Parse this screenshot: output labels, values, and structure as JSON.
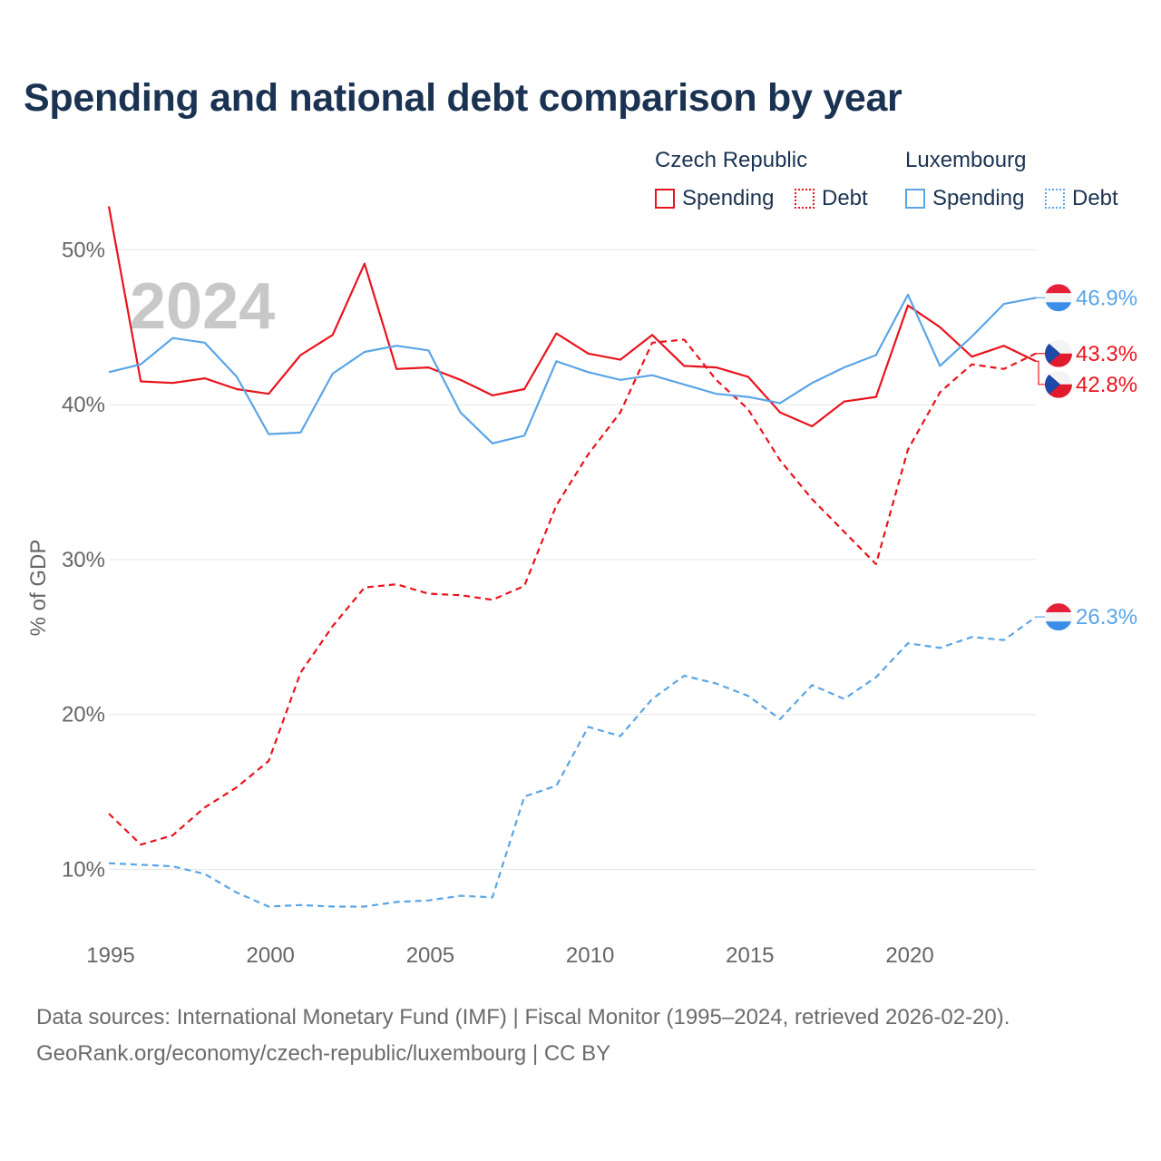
{
  "title": "Spending and national debt comparison by year",
  "legend": {
    "groups": [
      {
        "name": "Czech Republic",
        "items": [
          {
            "label": "Spending"
          },
          {
            "label": "Debt"
          }
        ]
      },
      {
        "name": "Luxembourg",
        "items": [
          {
            "label": "Spending"
          },
          {
            "label": "Debt"
          }
        ]
      }
    ]
  },
  "colors": {
    "czech": "#e8141d",
    "luxembourg": "#5aa5e6",
    "grid": "#e6e6e6",
    "axis_text": "#666666",
    "year_watermark": "#c8c8c8"
  },
  "footer": {
    "line1": "Data sources: International Monetary Fund (IMF) | Fiscal Monitor (1995–2024, retrieved 2026-02-20).",
    "line2": "GeoRank.org/economy/czech-republic/luxembourg | CC BY"
  },
  "chart_data": {
    "type": "line",
    "year_label": "2024",
    "ylabel": "% of GDP",
    "xlim": [
      1995,
      2024
    ],
    "ylim": [
      4,
      54
    ],
    "x_ticks": [
      1995,
      2000,
      2005,
      2010,
      2015,
      2020
    ],
    "y_ticks": [
      {
        "value": 10,
        "label": "10%"
      },
      {
        "value": 20,
        "label": "20%"
      },
      {
        "value": 30,
        "label": "30%"
      },
      {
        "value": 40,
        "label": "40%"
      },
      {
        "value": 50,
        "label": "50%"
      }
    ],
    "x": [
      1995,
      1996,
      1997,
      1998,
      1999,
      2000,
      2001,
      2002,
      2003,
      2004,
      2005,
      2006,
      2007,
      2008,
      2009,
      2010,
      2011,
      2012,
      2013,
      2014,
      2015,
      2016,
      2017,
      2018,
      2019,
      2020,
      2021,
      2022,
      2023,
      2024
    ],
    "series": [
      {
        "name": "Czech Republic Spending",
        "country": "czech",
        "style": "solid",
        "values": [
          52.8,
          41.5,
          41.4,
          41.7,
          41.0,
          40.7,
          43.2,
          44.5,
          49.1,
          42.3,
          42.4,
          41.6,
          40.6,
          41.0,
          44.6,
          43.3,
          42.9,
          44.5,
          42.5,
          42.4,
          41.8,
          39.5,
          38.6,
          40.2,
          40.5,
          46.4,
          45.0,
          43.1,
          43.8,
          42.8
        ],
        "end_label": "42.8%"
      },
      {
        "name": "Czech Republic Debt",
        "country": "czech",
        "style": "dashed",
        "values": [
          13.6,
          11.6,
          12.2,
          14.0,
          15.3,
          17.0,
          22.7,
          25.7,
          28.2,
          28.4,
          27.8,
          27.7,
          27.4,
          28.3,
          33.5,
          36.8,
          39.5,
          44.0,
          44.2,
          41.6,
          39.7,
          36.4,
          33.9,
          31.8,
          29.7,
          37.1,
          40.8,
          42.6,
          42.3,
          43.3
        ],
        "end_label": "43.3%"
      },
      {
        "name": "Luxembourg Spending",
        "country": "luxembourg",
        "style": "solid",
        "values": [
          42.1,
          42.6,
          44.3,
          44.0,
          41.8,
          38.1,
          38.2,
          42.0,
          43.4,
          43.8,
          43.5,
          39.5,
          37.5,
          38.0,
          42.8,
          42.1,
          41.6,
          41.9,
          41.3,
          40.7,
          40.5,
          40.1,
          41.4,
          42.4,
          43.2,
          47.1,
          42.5,
          44.4,
          46.5,
          46.9
        ],
        "end_label": "46.9%"
      },
      {
        "name": "Luxembourg Debt",
        "country": "luxembourg",
        "style": "dashed",
        "values": [
          10.4,
          10.3,
          10.2,
          9.7,
          8.5,
          7.6,
          7.7,
          7.6,
          7.6,
          7.9,
          8.0,
          8.3,
          8.2,
          14.7,
          15.4,
          19.2,
          18.6,
          21.0,
          22.5,
          22.0,
          21.2,
          19.7,
          21.9,
          21.0,
          22.4,
          24.6,
          24.3,
          25.0,
          24.8,
          26.3
        ],
        "end_label": "26.3%"
      }
    ]
  }
}
